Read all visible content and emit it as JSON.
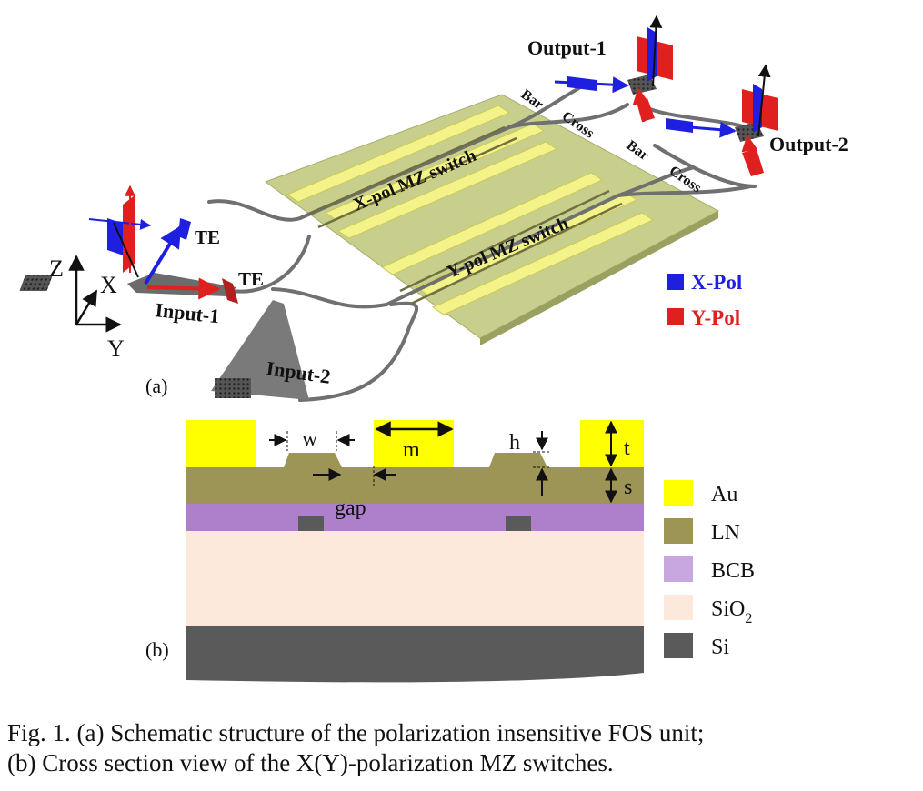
{
  "panel_a": {
    "tag": "(a)",
    "axes": {
      "z": "Z",
      "x": "X",
      "y": "Y"
    },
    "te_label_1": "TE",
    "te_label_2": "TE",
    "input_1": "Input-1",
    "input_2": "Input-2",
    "output_1": "Output-1",
    "output_2": "Output-2",
    "switch_x": "X-pol MZ switch",
    "switch_y": "Y-pol MZ switch",
    "bar_1": "Bar",
    "cross_1": "Cross",
    "bar_2": "Bar",
    "cross_2": "Cross",
    "legend": [
      {
        "label": "X-Pol",
        "color": "#1f1fe0"
      },
      {
        "label": "Y-Pol",
        "color": "#e01f1f"
      }
    ]
  },
  "panel_b": {
    "tag": "(b)",
    "dims": {
      "w": "w",
      "m": "m",
      "h": "h",
      "t": "t",
      "s": "s",
      "gap": "gap"
    },
    "legend": [
      {
        "label": "Au",
        "color": "#ffff00"
      },
      {
        "label": "LN",
        "color": "#9c9556"
      },
      {
        "label": "BCB",
        "color": "#c8a6df"
      },
      {
        "label": "SiO",
        "sub": "2",
        "color": "#fde9dc"
      },
      {
        "label": "Si",
        "color": "#5a5a5a"
      }
    ]
  },
  "caption": {
    "line1": "Fig. 1.    (a) Schematic structure of the polarization insensitive FOS unit;",
    "line2": "(b) Cross section view of the X(Y)-polarization MZ switches."
  }
}
